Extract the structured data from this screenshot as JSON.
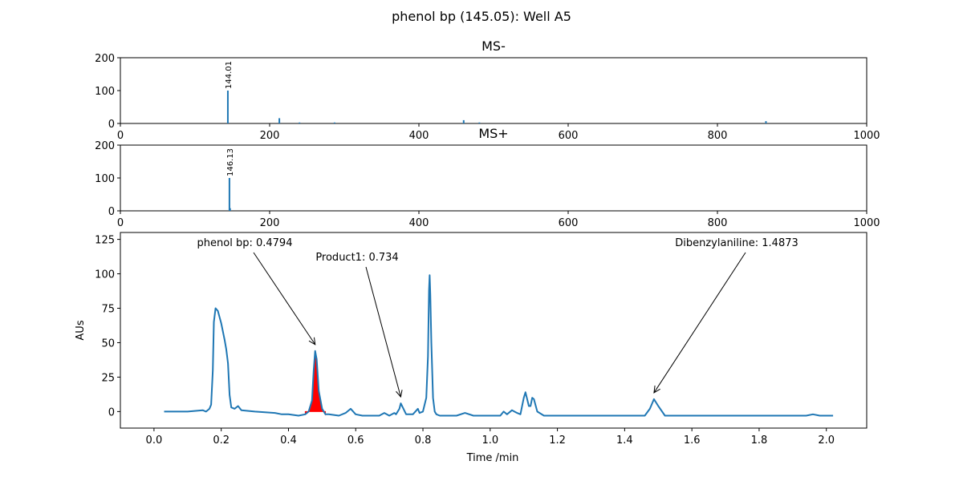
{
  "figure": {
    "suptitle": "phenol bp (145.05): Well A5"
  },
  "colors": {
    "line": "#1f77b4",
    "highlight": "#ff0000",
    "axes": "#000000"
  },
  "chart_data": [
    {
      "type": "bar",
      "title": "MS-",
      "xlim": [
        0,
        1000
      ],
      "ylim": [
        0,
        200
      ],
      "xticks": [
        "0",
        "200",
        "400",
        "600",
        "800",
        "1000"
      ],
      "yticks": [
        "0",
        "100",
        "200"
      ],
      "peaks": [
        {
          "mz": 144.01,
          "intensity": 100
        },
        {
          "mz": 213,
          "intensity": 16
        },
        {
          "mz": 240,
          "intensity": 3
        },
        {
          "mz": 287,
          "intensity": 3
        },
        {
          "mz": 460,
          "intensity": 10
        },
        {
          "mz": 481,
          "intensity": 3
        },
        {
          "mz": 865,
          "intensity": 7
        }
      ],
      "peak_label": "144.01"
    },
    {
      "type": "bar",
      "title": "MS+",
      "xlim": [
        0,
        1000
      ],
      "ylim": [
        0,
        200
      ],
      "xticks": [
        "0",
        "200",
        "400",
        "600",
        "800",
        "1000"
      ],
      "yticks": [
        "0",
        "100",
        "200"
      ],
      "peaks": [
        {
          "mz": 146.13,
          "intensity": 100
        },
        {
          "mz": 147,
          "intensity": 8
        }
      ],
      "peak_label": "146.13"
    },
    {
      "type": "line",
      "xlabel": "Time /min",
      "ylabel": "AUs",
      "xlim": [
        -0.1,
        2.12
      ],
      "ylim": [
        -12,
        130
      ],
      "xticks": [
        "0.0",
        "0.2",
        "0.4",
        "0.6",
        "0.8",
        "1.0",
        "1.2",
        "1.4",
        "1.6",
        "1.8",
        "2.0"
      ],
      "yticks": [
        "0",
        "25",
        "50",
        "75",
        "100",
        "125"
      ],
      "x": [
        0.03,
        0.1,
        0.145,
        0.155,
        0.165,
        0.17,
        0.175,
        0.178,
        0.183,
        0.19,
        0.2,
        0.21,
        0.215,
        0.22,
        0.225,
        0.23,
        0.24,
        0.25,
        0.26,
        0.3,
        0.36,
        0.38,
        0.4,
        0.43,
        0.45,
        0.46,
        0.47,
        0.475,
        0.4794,
        0.484,
        0.49,
        0.5,
        0.51,
        0.52,
        0.55,
        0.57,
        0.585,
        0.6,
        0.62,
        0.67,
        0.685,
        0.7,
        0.715,
        0.72,
        0.73,
        0.734,
        0.74,
        0.75,
        0.77,
        0.785,
        0.79,
        0.8,
        0.81,
        0.815,
        0.818,
        0.82,
        0.822,
        0.825,
        0.83,
        0.835,
        0.84,
        0.85,
        0.9,
        0.925,
        0.95,
        1.0,
        1.03,
        1.04,
        1.05,
        1.065,
        1.08,
        1.09,
        1.1,
        1.105,
        1.11,
        1.115,
        1.12,
        1.125,
        1.13,
        1.14,
        1.16,
        1.2,
        1.4,
        1.46,
        1.475,
        1.4873,
        1.5,
        1.52,
        1.6,
        1.8,
        1.94,
        1.96,
        1.98,
        2.02
      ],
      "y": [
        0,
        0,
        1,
        0,
        2,
        5,
        30,
        65,
        75,
        73,
        64,
        52,
        45,
        35,
        12,
        3,
        2,
        4,
        1,
        0,
        -1,
        -2,
        -2,
        -3,
        -2,
        0,
        8,
        30,
        44,
        38,
        15,
        2,
        -2,
        -2,
        -3,
        -1,
        2,
        -2,
        -3,
        -3,
        -1,
        -3,
        -1,
        -2,
        2,
        6,
        3,
        -2,
        -2,
        2,
        -1,
        0,
        10,
        40,
        88,
        99,
        85,
        50,
        10,
        0,
        -2,
        -3,
        -3,
        -1,
        -3,
        -3,
        -3,
        0,
        -2,
        1,
        -1,
        -2,
        10,
        14,
        9,
        4,
        4,
        10,
        9,
        0,
        -3,
        -3,
        -3,
        -3,
        2,
        9,
        4,
        -3,
        -3,
        -3,
        -3,
        -2,
        -3,
        -3
      ],
      "highlight_range": [
        0.45,
        0.51
      ],
      "annotations": [
        {
          "text": "phenol bp: 0.4794",
          "x": 0.4794,
          "y": 44
        },
        {
          "text": "Product1: 0.734",
          "x": 0.734,
          "y": 6
        },
        {
          "text": "Dibenzylaniline: 1.4873",
          "x": 1.4873,
          "y": 9
        }
      ]
    }
  ]
}
